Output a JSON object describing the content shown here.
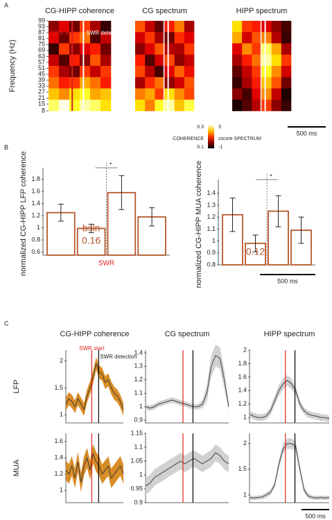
{
  "panel_labels": [
    "A",
    "B",
    "C"
  ],
  "chart_data": [
    {
      "type": "heatmap",
      "title": "CG-HIPP coherence",
      "ylabel": "Frequency (Hz)",
      "ylim": [
        8,
        99
      ],
      "yticks": [
        99,
        93,
        87,
        81,
        75,
        69,
        63,
        57,
        51,
        45,
        39,
        33,
        27,
        21,
        15,
        8
      ],
      "clim": [
        0.1,
        0.3
      ],
      "annotations": [
        "SWR start",
        "SWR detection"
      ],
      "z": [
        [
          0.15,
          0.18,
          0.14,
          0.2,
          0.16,
          0.12
        ],
        [
          0.18,
          0.14,
          0.2,
          0.22,
          0.13,
          0.17
        ],
        [
          0.12,
          0.2,
          0.15,
          0.18,
          0.19,
          0.14
        ],
        [
          0.17,
          0.13,
          0.19,
          0.15,
          0.21,
          0.16
        ],
        [
          0.2,
          0.16,
          0.14,
          0.2,
          0.17,
          0.2
        ],
        [
          0.22,
          0.19,
          0.2,
          0.24,
          0.22,
          0.19
        ],
        [
          0.25,
          0.23,
          0.26,
          0.27,
          0.24,
          0.25
        ],
        [
          0.28,
          0.3,
          0.27,
          0.29,
          0.28,
          0.26
        ]
      ]
    },
    {
      "type": "heatmap",
      "title": "CG spectrum",
      "clim": [
        -1,
        3
      ],
      "z": [
        [
          1.2,
          0.4,
          -0.3,
          0.8,
          1.5,
          0.2
        ],
        [
          0.5,
          1.0,
          0.2,
          -0.2,
          0.9,
          0.6
        ],
        [
          0.0,
          0.6,
          1.2,
          0.3,
          0.2,
          1.0
        ],
        [
          0.8,
          -0.4,
          0.5,
          1.1,
          0.0,
          0.4
        ],
        [
          1.1,
          0.3,
          -0.5,
          0.6,
          1.3,
          0.7
        ],
        [
          0.2,
          0.9,
          1.4,
          0.0,
          0.5,
          1.2
        ],
        [
          1.5,
          1.8,
          1.0,
          2.2,
          1.6,
          1.1
        ],
        [
          2.2,
          1.5,
          2.4,
          2.8,
          2.0,
          2.5
        ]
      ]
    },
    {
      "type": "heatmap",
      "title": "HIPP spectrum",
      "clim": [
        -1,
        3
      ],
      "scale_bar": "500 ms",
      "z": [
        [
          2.2,
          1.0,
          0.8,
          0.6,
          0.0,
          -0.5
        ],
        [
          1.8,
          0.5,
          1.2,
          1.5,
          0.3,
          -0.6
        ],
        [
          0.6,
          1.6,
          1.0,
          2.6,
          1.8,
          0.2
        ],
        [
          0.2,
          0.8,
          1.4,
          2.8,
          2.2,
          1.0
        ],
        [
          -0.3,
          0.4,
          1.0,
          2.4,
          1.6,
          0.5
        ],
        [
          -0.6,
          0.2,
          0.8,
          2.0,
          1.2,
          -0.2
        ],
        [
          0.0,
          -0.5,
          0.6,
          1.6,
          0.4,
          -0.8
        ],
        [
          -0.8,
          -0.4,
          0.3,
          1.0,
          0.0,
          -0.6
        ]
      ]
    },
    {
      "type": "colorbar",
      "title": "COHERENCE",
      "title2": "zscore SPECTRUM",
      "ticks": [
        0.3,
        0.1
      ],
      "ticks2": [
        3,
        -1
      ]
    },
    {
      "type": "bar",
      "ylabel": "normalized CG-HIPP LFP coherence",
      "ylim": [
        0.55,
        1.92
      ],
      "yticks": [
        0.6,
        0.8,
        1,
        1.2,
        1.4,
        1.6,
        1.8
      ],
      "color": "#b5562a",
      "values": [
        1.25,
        0.99,
        1.58,
        1.18
      ],
      "error": [
        0.14,
        0.07,
        0.28,
        0.15
      ],
      "inner_labels": [
        "bsln",
        "0.16"
      ],
      "event_label": "SWR",
      "significance": "*"
    },
    {
      "type": "bar",
      "ylabel": "normalized CG-HIPP MUA coherence",
      "ylim": [
        0.8,
        1.48
      ],
      "yticks": [
        0.8,
        0.9,
        1,
        1.1,
        1.2,
        1.3,
        1.4
      ],
      "color": "#b5562a",
      "values": [
        1.22,
        0.98,
        1.25,
        1.09
      ],
      "error": [
        0.14,
        0.07,
        0.13,
        0.11
      ],
      "inner_labels": [
        "0.12"
      ],
      "significance": "*",
      "scale_bar": "500 ms"
    },
    {
      "type": "line",
      "title": "CG-HIPP coherence",
      "row_label": "LFP",
      "annotations": [
        "SWR start",
        "SWR detection"
      ],
      "ylim": [
        0.85,
        2.2
      ],
      "yticks": [
        1,
        1.5,
        2
      ],
      "color": "#333333",
      "band_color": "#d4810f",
      "values": [
        1.2,
        1.3,
        1.25,
        1.15,
        1.3,
        1.2,
        1.1,
        1.35,
        1.5,
        1.7,
        1.95,
        1.8,
        1.75,
        1.6,
        1.65,
        1.5,
        1.4,
        1.35,
        1.25,
        1.1
      ],
      "error": [
        0.12,
        0.12,
        0.12,
        0.12,
        0.12,
        0.12,
        0.12,
        0.12,
        0.12,
        0.12,
        0.12,
        0.12,
        0.12,
        0.12,
        0.12,
        0.12,
        0.12,
        0.12,
        0.12,
        0.12
      ]
    },
    {
      "type": "line",
      "title": "CG spectrum",
      "ylim": [
        0.88,
        1.42
      ],
      "yticks": [
        0.9,
        1,
        1.1,
        1.2,
        1.3,
        1.4
      ],
      "color": "#333333",
      "band_color": "#cccccc",
      "values": [
        1.0,
        0.99,
        1.0,
        1.02,
        1.03,
        1.04,
        1.05,
        1.04,
        1.03,
        1.02,
        1.01,
        1.0,
        1.0,
        1.02,
        1.1,
        1.3,
        1.38,
        1.36,
        1.2,
        1.0
      ],
      "error": [
        0.02,
        0.02,
        0.02,
        0.02,
        0.02,
        0.02,
        0.02,
        0.02,
        0.02,
        0.02,
        0.02,
        0.02,
        0.02,
        0.03,
        0.06,
        0.08,
        0.08,
        0.08,
        0.07,
        0.03
      ]
    },
    {
      "type": "line",
      "title": "HIPP spectrum",
      "ylim": [
        0.92,
        2
      ],
      "yticks": [
        1,
        1.2,
        1.4,
        1.6,
        1.8,
        2
      ],
      "color": "#333333",
      "band_color": "#cccccc",
      "values": [
        1.05,
        1.02,
        1.0,
        1.0,
        1.02,
        1.1,
        1.25,
        1.4,
        1.5,
        1.55,
        1.5,
        1.4,
        1.2,
        1.1,
        1.05,
        1.03,
        1.02,
        1.0,
        1.0,
        0.98
      ],
      "error": [
        0.05,
        0.05,
        0.05,
        0.05,
        0.05,
        0.06,
        0.07,
        0.08,
        0.08,
        0.08,
        0.08,
        0.07,
        0.06,
        0.05,
        0.05,
        0.05,
        0.05,
        0.05,
        0.05,
        0.05
      ]
    },
    {
      "type": "line",
      "row_label": "MUA",
      "ylim": [
        0.85,
        1.7
      ],
      "yticks": [
        1,
        1.2,
        1.4,
        1.6
      ],
      "color": "#333333",
      "band_color": "#d4810f",
      "values": [
        1.25,
        1.2,
        1.3,
        1.15,
        1.35,
        1.1,
        1.3,
        1.4,
        1.25,
        1.45,
        1.35,
        1.3,
        1.2,
        1.25,
        1.3,
        1.15,
        1.2,
        1.25,
        1.3,
        1.2
      ],
      "error": [
        0.12,
        0.12,
        0.12,
        0.12,
        0.12,
        0.12,
        0.12,
        0.12,
        0.12,
        0.12,
        0.12,
        0.12,
        0.12,
        0.12,
        0.12,
        0.12,
        0.12,
        0.12,
        0.12,
        0.12
      ]
    },
    {
      "type": "line",
      "ylim": [
        0.9,
        1.15
      ],
      "yticks": [
        0.9,
        0.95,
        1,
        1.05,
        1.1,
        1.15
      ],
      "color": "#333333",
      "band_color": "#cccccc",
      "values": [
        0.96,
        0.97,
        0.99,
        1.0,
        1.01,
        1.02,
        1.03,
        1.04,
        1.05,
        1.04,
        1.05,
        1.06,
        1.05,
        1.04,
        1.05,
        1.06,
        1.08,
        1.07,
        1.05,
        1.04
      ],
      "error": [
        0.03,
        0.03,
        0.03,
        0.03,
        0.03,
        0.03,
        0.03,
        0.03,
        0.03,
        0.03,
        0.03,
        0.03,
        0.03,
        0.03,
        0.03,
        0.03,
        0.03,
        0.03,
        0.03,
        0.03
      ]
    },
    {
      "type": "line",
      "ylim": [
        0.85,
        2.2
      ],
      "yticks": [
        1,
        1.5,
        2
      ],
      "color": "#333333",
      "band_color": "#cccccc",
      "scale_bar": "500 ms",
      "values": [
        0.95,
        0.94,
        0.95,
        0.96,
        1.0,
        1.05,
        1.2,
        1.6,
        1.9,
        2.0,
        2.0,
        1.95,
        1.5,
        1.1,
        0.98,
        0.95,
        0.94,
        0.95,
        0.94,
        0.95
      ],
      "error": [
        0.04,
        0.04,
        0.04,
        0.04,
        0.05,
        0.05,
        0.06,
        0.08,
        0.1,
        0.1,
        0.1,
        0.1,
        0.08,
        0.06,
        0.05,
        0.04,
        0.04,
        0.04,
        0.04,
        0.04
      ]
    }
  ]
}
